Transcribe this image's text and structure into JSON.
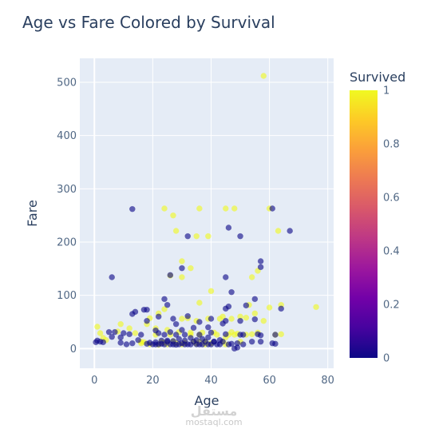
{
  "chart_data": {
    "type": "scatter",
    "title": "Age vs Fare Colored by Survival",
    "xlabel": "Age",
    "ylabel": "Fare",
    "xlim": [
      -5,
      82
    ],
    "ylim": [
      -37,
      545
    ],
    "x_ticks": [
      0,
      20,
      40,
      60,
      80
    ],
    "y_ticks": [
      0,
      100,
      200,
      300,
      400,
      500
    ],
    "colorbar": {
      "title": "Survived",
      "range": [
        0,
        1
      ],
      "ticks": [
        0,
        0.2,
        0.4,
        0.6,
        0.8,
        1
      ],
      "tick_labels": [
        "0",
        "0.2",
        "0.4",
        "0.6",
        "0.8",
        "1"
      ],
      "colorscale": [
        "#0d0887",
        "#46039f",
        "#7201a8",
        "#9c179e",
        "#bd3786",
        "#d8576b",
        "#ed7953",
        "#fb9f3a",
        "#fdca26",
        "#f0f921"
      ]
    },
    "series": [
      {
        "color_value": 1,
        "points": [
          [
            58,
            512
          ],
          [
            36,
            263
          ],
          [
            24,
            263
          ],
          [
            27,
            250
          ],
          [
            45,
            263
          ],
          [
            48,
            263
          ],
          [
            60,
            263
          ],
          [
            63,
            221
          ],
          [
            28,
            221
          ],
          [
            35,
            211
          ],
          [
            39,
            211
          ],
          [
            30,
            164
          ],
          [
            26,
            137
          ],
          [
            30,
            134
          ],
          [
            33,
            151
          ],
          [
            54,
            134
          ],
          [
            56,
            146
          ],
          [
            40,
            108
          ],
          [
            36,
            86
          ],
          [
            53,
            82
          ],
          [
            60,
            77
          ],
          [
            64,
            82
          ],
          [
            76,
            78
          ],
          [
            19,
            57
          ],
          [
            22,
            66
          ],
          [
            24,
            74
          ],
          [
            30,
            56
          ],
          [
            32,
            57
          ],
          [
            35,
            52
          ],
          [
            39,
            56
          ],
          [
            43,
            56
          ],
          [
            44,
            60
          ],
          [
            47,
            56
          ],
          [
            50,
            60
          ],
          [
            52,
            58
          ],
          [
            55,
            66
          ],
          [
            58,
            52
          ],
          [
            18,
            46
          ],
          [
            21,
            38
          ],
          [
            25,
            35
          ],
          [
            29,
            31
          ],
          [
            33,
            30
          ],
          [
            37,
            30
          ],
          [
            41,
            30
          ],
          [
            46,
            26
          ],
          [
            49,
            28
          ],
          [
            54,
            27
          ],
          [
            56,
            30
          ],
          [
            62,
            26
          ],
          [
            64,
            27
          ],
          [
            1,
            41
          ],
          [
            2,
            29
          ],
          [
            3,
            20
          ],
          [
            4,
            16
          ],
          [
            8,
            32
          ],
          [
            9,
            46
          ],
          [
            12,
            38
          ],
          [
            14,
            29
          ],
          [
            16,
            13
          ],
          [
            17,
            12
          ],
          [
            19,
            8
          ],
          [
            21,
            26
          ],
          [
            23,
            13
          ],
          [
            24,
            11
          ],
          [
            26,
            26
          ],
          [
            27,
            14
          ],
          [
            28,
            10
          ],
          [
            30,
            7.9
          ],
          [
            31,
            11
          ],
          [
            33,
            26
          ],
          [
            34,
            13
          ],
          [
            35,
            9
          ],
          [
            36,
            26
          ],
          [
            38,
            13
          ],
          [
            40,
            10
          ],
          [
            42,
            26
          ],
          [
            44,
            13
          ],
          [
            45,
            7.9
          ],
          [
            47,
            31
          ],
          [
            48,
            26
          ],
          [
            50,
            13
          ],
          [
            52,
            26
          ],
          [
            16,
            10
          ],
          [
            22,
            7.2
          ],
          [
            25,
            7.9
          ],
          [
            36,
            13
          ],
          [
            38,
            7.9
          ],
          [
            45,
            21
          ]
        ]
      },
      {
        "color_value": 0,
        "points": [
          [
            13,
            262
          ],
          [
            61,
            263
          ],
          [
            46,
            227
          ],
          [
            50,
            211
          ],
          [
            67,
            221
          ],
          [
            32,
            211
          ],
          [
            57,
            164
          ],
          [
            57,
            153
          ],
          [
            30,
            151
          ],
          [
            26,
            138
          ],
          [
            45,
            134
          ],
          [
            6,
            134
          ],
          [
            47,
            106
          ],
          [
            24,
            93
          ],
          [
            55,
            93
          ],
          [
            25,
            82
          ],
          [
            46,
            79
          ],
          [
            52,
            81
          ],
          [
            64,
            75
          ],
          [
            45,
            75
          ],
          [
            14,
            69
          ],
          [
            13,
            65
          ],
          [
            17,
            73
          ],
          [
            18,
            73
          ],
          [
            22,
            60
          ],
          [
            27,
            56
          ],
          [
            32,
            61
          ],
          [
            40,
            56
          ],
          [
            45,
            52
          ],
          [
            50,
            52
          ],
          [
            55,
            55
          ],
          [
            18,
            52
          ],
          [
            28,
            46
          ],
          [
            36,
            50
          ],
          [
            44,
            47
          ],
          [
            39,
            40
          ],
          [
            34,
            39
          ],
          [
            30,
            35
          ],
          [
            26,
            31
          ],
          [
            22,
            29
          ],
          [
            21,
            34
          ],
          [
            24,
            26
          ],
          [
            28,
            26
          ],
          [
            31,
            26
          ],
          [
            36,
            26
          ],
          [
            40,
            30
          ],
          [
            45,
            27
          ],
          [
            51,
            26
          ],
          [
            56,
            27
          ],
          [
            57,
            25
          ],
          [
            62,
            26
          ],
          [
            5,
            31
          ],
          [
            6,
            22
          ],
          [
            7,
            31
          ],
          [
            9,
            21
          ],
          [
            10,
            29
          ],
          [
            12,
            27
          ],
          [
            15,
            16
          ],
          [
            18,
            9
          ],
          [
            19,
            11
          ],
          [
            20,
            8
          ],
          [
            21,
            7.8
          ],
          [
            22,
            8
          ],
          [
            23,
            9
          ],
          [
            24,
            7.9
          ],
          [
            25,
            13
          ],
          [
            26,
            8
          ],
          [
            27,
            7.8
          ],
          [
            28,
            7.2
          ],
          [
            29,
            8
          ],
          [
            30,
            10
          ],
          [
            31,
            7.9
          ],
          [
            32,
            8
          ],
          [
            33,
            7.8
          ],
          [
            34,
            13
          ],
          [
            35,
            8
          ],
          [
            36,
            7.9
          ],
          [
            37,
            7.9
          ],
          [
            38,
            13
          ],
          [
            39,
            8
          ],
          [
            40,
            7.8
          ],
          [
            41,
            13
          ],
          [
            42,
            7.9
          ],
          [
            43,
            8
          ],
          [
            44,
            13
          ],
          [
            46,
            7.9
          ],
          [
            47,
            9
          ],
          [
            49,
            10
          ],
          [
            50,
            26
          ],
          [
            51,
            7.9
          ],
          [
            54,
            13
          ],
          [
            57,
            13
          ],
          [
            61,
            10
          ],
          [
            62,
            9
          ],
          [
            0.5,
            12
          ],
          [
            1,
            15
          ],
          [
            2,
            13
          ],
          [
            9,
            11
          ],
          [
            11,
            8
          ],
          [
            13,
            10
          ],
          [
            16,
            26
          ],
          [
            21,
            12
          ],
          [
            23,
            15
          ],
          [
            25,
            15
          ],
          [
            27,
            14
          ],
          [
            29,
            18
          ],
          [
            31,
            15
          ],
          [
            33,
            20
          ],
          [
            35,
            16
          ],
          [
            37,
            18
          ],
          [
            39,
            21
          ],
          [
            41,
            13
          ],
          [
            43,
            16
          ],
          [
            49,
            2
          ],
          [
            48,
            0
          ],
          [
            3,
            12
          ]
        ]
      }
    ]
  },
  "watermark": {
    "arabic": "مستقل",
    "latin": "mostaql.com"
  }
}
